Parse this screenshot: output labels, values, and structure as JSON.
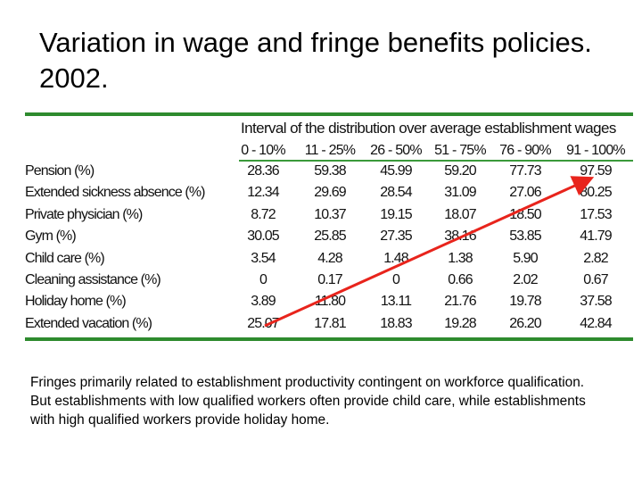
{
  "slide": {
    "title": "Variation in wage and fringe benefits policies. 2002.",
    "note": "Fringes primarily related to establishment productivity contingent on workforce qualification. But establishments with low qualified workers often provide child care, while establishments with high qualified workers provide holiday home."
  },
  "table": {
    "interval_header": "Interval of the distribution over average establishment wages",
    "columns": [
      "0 - 10%",
      "11 - 25%",
      "26 - 50%",
      "51 - 75%",
      "76 - 90%",
      "91 - 100%"
    ],
    "rows": [
      {
        "label": "Pension (%)",
        "values": [
          "28.36",
          "59.38",
          "45.99",
          "59.20",
          "77.73",
          "97.59"
        ]
      },
      {
        "label": "Extended sickness absence (%)",
        "values": [
          "12.34",
          "29.69",
          "28.54",
          "31.09",
          "27.06",
          "80.25"
        ]
      },
      {
        "label": "Private physician (%)",
        "values": [
          "8.72",
          "10.37",
          "19.15",
          "18.07",
          "18.50",
          "17.53"
        ]
      },
      {
        "label": "Gym (%)",
        "values": [
          "30.05",
          "25.85",
          "27.35",
          "38.16",
          "53.85",
          "41.79"
        ]
      },
      {
        "label": "Child care (%)",
        "values": [
          "3.54",
          "4.28",
          "1.48",
          "1.38",
          "5.90",
          "2.82"
        ]
      },
      {
        "label": "Cleaning assistance (%)",
        "values": [
          "0",
          "0.17",
          "0",
          "0.66",
          "2.02",
          "0.67"
        ]
      },
      {
        "label": "Holiday home (%)",
        "values": [
          "3.89",
          "11.80",
          "13.11",
          "21.76",
          "19.78",
          "37.58"
        ]
      },
      {
        "label": "Extended vacation (%)",
        "values": [
          "25.07",
          "17.81",
          "18.83",
          "19.28",
          "26.20",
          "42.84"
        ]
      }
    ]
  },
  "annotation": {
    "arrow_color": "#e8241c"
  },
  "colors": {
    "rule": "#2e8b2e"
  }
}
